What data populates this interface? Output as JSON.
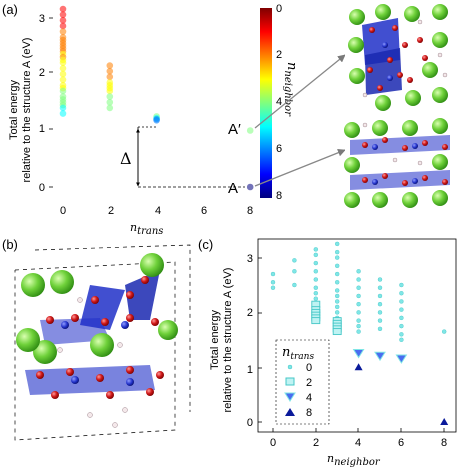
{
  "figure": {
    "panel_a": {
      "letter": "(a)",
      "ylabel_line1": "Total energy",
      "ylabel_line2": "relative to the structure A (eV)",
      "xlabel_main": "n",
      "xlabel_sub": "trans",
      "delta_label": "Δ",
      "label_a_prime": "A′",
      "label_a": "A",
      "colorbar_label_main": "n",
      "colorbar_label_sub": "neighbor",
      "colorbar_ticks": [
        "0",
        "2",
        "4",
        "6",
        "8"
      ],
      "xticks": [
        "0",
        "2",
        "4",
        "6",
        "8"
      ],
      "yticks": [
        "0",
        "1",
        "2",
        "3"
      ]
    },
    "panel_b": {
      "letter": "(b)"
    },
    "panel_c": {
      "letter": "(c)",
      "ylabel_line1": "Total energy",
      "ylabel_line2": "relative to the structure A (eV)",
      "xlabel_main": "n",
      "xlabel_sub": "neighbor",
      "xticks": [
        "0",
        "2",
        "4",
        "6",
        "8"
      ],
      "yticks": [
        "0",
        "1",
        "2",
        "3"
      ],
      "legend_title_main": "n",
      "legend_title_sub": "trans",
      "legend_entries": [
        "0",
        "2",
        "4",
        "8"
      ]
    }
  },
  "colors": {
    "cyan": "#7fe6e6",
    "cyan_edge": "#45c7c7",
    "blue": "#4a6cf0",
    "navy": "#0a1a9a",
    "green_atom": "#6fd13a",
    "red_atom": "#d11a1a",
    "octahedron": "#2030c8"
  },
  "chart_data": [
    {
      "panel": "a",
      "type": "scatter",
      "xlabel": "n_trans",
      "ylabel": "Total energy relative to the structure A (eV)",
      "xlim": [
        -0.5,
        8.5
      ],
      "ylim": [
        -0.1,
        3.3
      ],
      "series": [
        {
          "x": [
            0,
            0,
            0,
            0,
            0,
            0,
            0,
            0,
            0,
            0,
            0,
            0,
            0,
            0,
            0,
            0,
            0,
            0,
            0,
            0,
            0,
            0,
            0,
            0,
            0,
            0,
            0
          ],
          "y": [
            3.15,
            3.05,
            2.95,
            2.85,
            2.75,
            2.65,
            2.6,
            2.55,
            2.5,
            2.45,
            2.4,
            2.35,
            2.3,
            2.25,
            2.2,
            2.1,
            2.0,
            1.9,
            1.8,
            1.75,
            1.7,
            1.6,
            1.55,
            1.5,
            1.45,
            1.4,
            1.3
          ],
          "c": [
            1,
            1,
            1,
            1,
            2,
            2,
            2,
            2,
            2,
            2,
            2,
            3,
            2,
            3,
            3,
            3,
            3,
            3,
            3,
            3,
            4,
            4,
            4,
            4,
            4,
            5,
            5
          ]
        },
        {
          "x": [
            2,
            2,
            2,
            2,
            2,
            2,
            2,
            2,
            2,
            2
          ],
          "y": [
            2.15,
            2.05,
            1.95,
            1.85,
            1.8,
            1.75,
            1.7,
            1.6,
            1.5,
            1.4
          ],
          "c": [
            2,
            2,
            2,
            3,
            3,
            3,
            3,
            4,
            4,
            4
          ]
        },
        {
          "x": [
            4,
            4,
            4,
            4
          ],
          "y": [
            1.25,
            1.22,
            1.2,
            1.18
          ],
          "c": [
            4,
            5,
            6,
            6
          ]
        },
        {
          "x": [
            8,
            8
          ],
          "y": [
            1.0,
            0.0
          ],
          "c": [
            4,
            8
          ]
        }
      ],
      "colorbar": {
        "label": "n_neighbor",
        "range": [
          0,
          8
        ],
        "colormap": "jet",
        "ticks": [
          0,
          2,
          4,
          6,
          8
        ]
      },
      "annotations": [
        "Δ",
        "A′",
        "A"
      ]
    },
    {
      "panel": "c",
      "type": "scatter",
      "xlabel": "n_neighbor",
      "ylabel": "Total energy relative to the structure A (eV)",
      "xlim": [
        -0.5,
        8.6
      ],
      "ylim": [
        -0.15,
        3.35
      ],
      "legend_title": "n_trans",
      "legend_loc": "lower-left",
      "series": [
        {
          "name": "0",
          "marker": "circle",
          "x": [
            0,
            0,
            0,
            1,
            1,
            1,
            2,
            2,
            2,
            2,
            2,
            2,
            2,
            2,
            2,
            3,
            3,
            3,
            3,
            3,
            3,
            3,
            3,
            3,
            3,
            3,
            3,
            3,
            4,
            4,
            4,
            4,
            4,
            4,
            4,
            4,
            4,
            5,
            5,
            5,
            5,
            5,
            5,
            5,
            6,
            6,
            6,
            6,
            6,
            6,
            6,
            6,
            8
          ],
          "y": [
            2.7,
            2.55,
            2.45,
            2.95,
            2.75,
            2.5,
            3.15,
            3.05,
            2.9,
            2.75,
            2.6,
            2.45,
            2.35,
            2.25,
            2.15,
            3.25,
            3.1,
            3.0,
            2.85,
            2.7,
            2.55,
            2.4,
            2.3,
            2.2,
            2.1,
            2.0,
            1.9,
            1.8,
            2.75,
            2.6,
            2.45,
            2.3,
            2.15,
            2.0,
            1.85,
            1.75,
            1.65,
            2.6,
            2.45,
            2.3,
            2.15,
            2.0,
            1.85,
            1.7,
            2.5,
            2.35,
            2.2,
            2.05,
            1.9,
            1.75,
            1.6,
            1.5,
            1.65
          ]
        },
        {
          "name": "2",
          "marker": "square",
          "x": [
            2,
            2,
            2,
            2,
            2,
            2,
            3,
            3,
            3,
            3,
            3
          ],
          "y": [
            2.15,
            2.05,
            2.0,
            1.95,
            1.9,
            1.85,
            1.85,
            1.8,
            1.75,
            1.7,
            1.65
          ]
        },
        {
          "name": "4",
          "marker": "triangle-down",
          "x": [
            4,
            5,
            6
          ],
          "y": [
            1.25,
            1.2,
            1.15
          ]
        },
        {
          "name": "8",
          "marker": "triangle-up",
          "x": [
            4,
            8
          ],
          "y": [
            1.0,
            0.0
          ]
        }
      ]
    }
  ]
}
